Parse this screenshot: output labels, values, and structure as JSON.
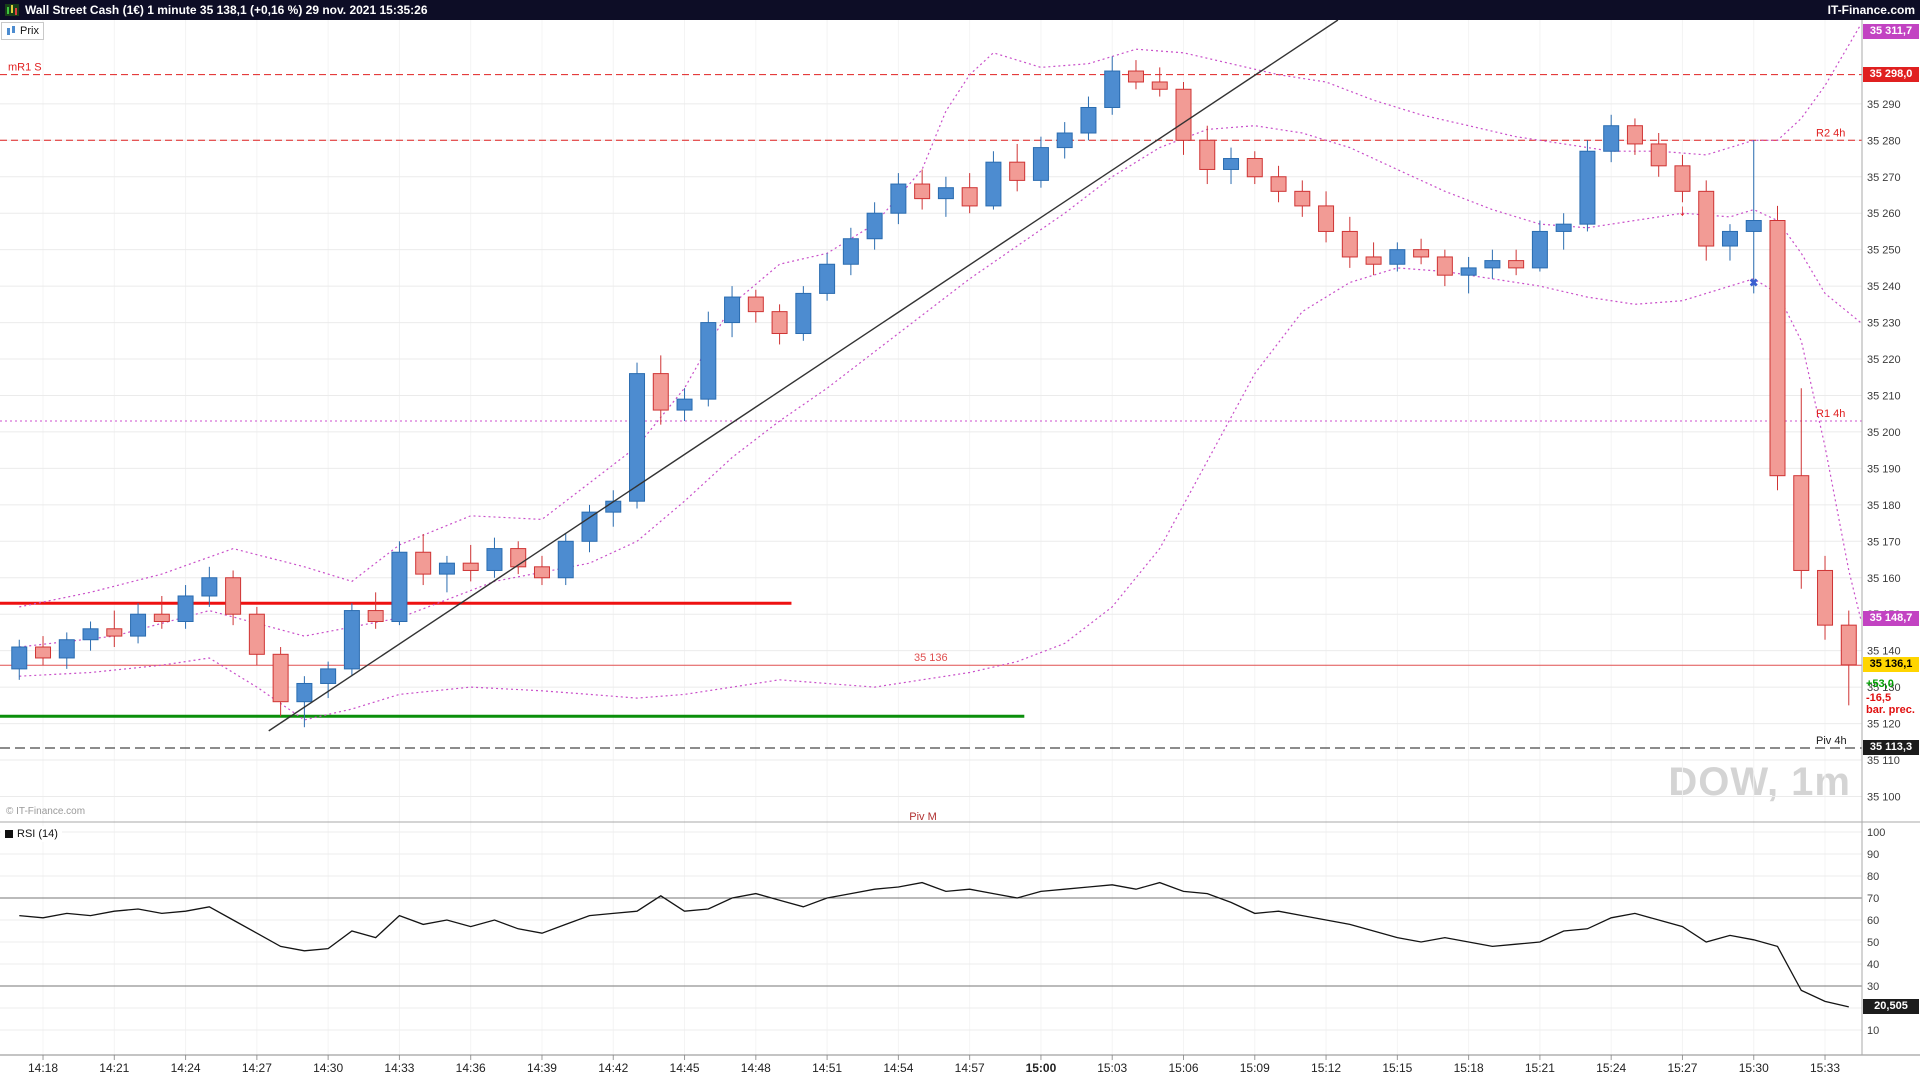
{
  "header": {
    "title": "Wall Street Cash (1€) 1 minute 35 138,1 (+0,16 %) 29 nov. 2021 15:35:26",
    "brand": "IT-Finance.com"
  },
  "toolbar": {
    "price_tab": "Prix"
  },
  "main": {
    "watermark": "DOW, 1m",
    "copyright": "© IT-Finance.com"
  },
  "axis_tags": {
    "upper_band": "35 311,7",
    "mr1s": "35 298,0",
    "lower_band": "35 148,7",
    "last_price": "35 136,1",
    "daily_change": "+53,0",
    "bar_prec_value": "-16,5",
    "bar_prec_label": "bar. prec.",
    "pivot": "35 113,3",
    "rsi_value": "20,505"
  },
  "chart_data": {
    "type": "candlestick",
    "symbol": "Wall Street Cash (1€)",
    "timeframe": "1 minute",
    "last": 35136.1,
    "ylim": [
      35093,
      35313
    ],
    "price_ticks": [
      35290,
      35280,
      35270,
      35260,
      35250,
      35240,
      35230,
      35220,
      35210,
      35200,
      35190,
      35180,
      35170,
      35160,
      35150,
      35140,
      35130,
      35120,
      35110,
      35100
    ],
    "time_labels": [
      "14:18",
      "14:21",
      "14:24",
      "14:27",
      "14:30",
      "14:33",
      "14:36",
      "14:39",
      "14:42",
      "14:45",
      "14:48",
      "14:51",
      "14:54",
      "14:57",
      "15:00",
      "15:03",
      "15:06",
      "15:09",
      "15:12",
      "15:15",
      "15:18",
      "15:21",
      "15:24",
      "15:27",
      "15:30",
      "15:33"
    ],
    "time_start_m": 2,
    "time_step_m": 3,
    "time_bold": "15:00",
    "candles": [
      [
        "14:17",
        35135,
        35143,
        35132,
        35141
      ],
      [
        "14:18",
        35141,
        35144,
        35136,
        35138
      ],
      [
        "14:19",
        35138,
        35145,
        35135,
        35143
      ],
      [
        "14:20",
        35143,
        35148,
        35140,
        35146
      ],
      [
        "14:21",
        35146,
        35151,
        35141,
        35144
      ],
      [
        "14:22",
        35144,
        35153,
        35142,
        35150
      ],
      [
        "14:23",
        35150,
        35155,
        35146,
        35148
      ],
      [
        "14:24",
        35148,
        35158,
        35146,
        35155
      ],
      [
        "14:25",
        35155,
        35163,
        35152,
        35160
      ],
      [
        "14:26",
        35160,
        35162,
        35147,
        35150
      ],
      [
        "14:27",
        35150,
        35152,
        35136,
        35139
      ],
      [
        "14:28",
        35139,
        35141,
        35122,
        35126
      ],
      [
        "14:29",
        35126,
        35133,
        35119,
        35131
      ],
      [
        "14:30",
        35131,
        35137,
        35127,
        35135
      ],
      [
        "14:31",
        35135,
        35153,
        35133,
        35151
      ],
      [
        "14:32",
        35151,
        35156,
        35146,
        35148
      ],
      [
        "14:33",
        35148,
        35170,
        35147,
        35167
      ],
      [
        "14:34",
        35167,
        35172,
        35158,
        35161
      ],
      [
        "14:35",
        35161,
        35166,
        35156,
        35164
      ],
      [
        "14:36",
        35164,
        35169,
        35159,
        35162
      ],
      [
        "14:37",
        35162,
        35171,
        35160,
        35168
      ],
      [
        "14:38",
        35168,
        35170,
        35161,
        35163
      ],
      [
        "14:39",
        35163,
        35166,
        35158,
        35160
      ],
      [
        "14:40",
        35160,
        35172,
        35158,
        35170
      ],
      [
        "14:41",
        35170,
        35180,
        35167,
        35178
      ],
      [
        "14:42",
        35178,
        35184,
        35174,
        35181
      ],
      [
        "14:43",
        35181,
        35219,
        35179,
        35216
      ],
      [
        "14:44",
        35216,
        35221,
        35202,
        35206
      ],
      [
        "14:45",
        35206,
        35212,
        35203,
        35209
      ],
      [
        "14:46",
        35209,
        35233,
        35207,
        35230
      ],
      [
        "14:47",
        35230,
        35240,
        35226,
        35237
      ],
      [
        "14:48",
        35237,
        35239,
        35230,
        35233
      ],
      [
        "14:49",
        35233,
        35235,
        35224,
        35227
      ],
      [
        "14:50",
        35227,
        35240,
        35225,
        35238
      ],
      [
        "14:51",
        35238,
        35249,
        35236,
        35246
      ],
      [
        "14:52",
        35246,
        35256,
        35243,
        35253
      ],
      [
        "14:53",
        35253,
        35263,
        35250,
        35260
      ],
      [
        "14:54",
        35260,
        35271,
        35257,
        35268
      ],
      [
        "14:55",
        35268,
        35272,
        35261,
        35264
      ],
      [
        "14:56",
        35264,
        35270,
        35259,
        35267
      ],
      [
        "14:57",
        35267,
        35271,
        35260,
        35262
      ],
      [
        "14:58",
        35262,
        35277,
        35261,
        35274
      ],
      [
        "14:59",
        35274,
        35279,
        35266,
        35269
      ],
      [
        "15:00",
        35269,
        35281,
        35267,
        35278
      ],
      [
        "15:01",
        35278,
        35285,
        35275,
        35282
      ],
      [
        "15:02",
        35282,
        35292,
        35280,
        35289
      ],
      [
        "15:03",
        35289,
        35303,
        35287,
        35299
      ],
      [
        "15:04",
        35299,
        35302,
        35294,
        35296
      ],
      [
        "15:05",
        35296,
        35300,
        35292,
        35294
      ],
      [
        "15:06",
        35294,
        35296,
        35276,
        35280
      ],
      [
        "15:07",
        35280,
        35284,
        35268,
        35272
      ],
      [
        "15:08",
        35272,
        35278,
        35268,
        35275
      ],
      [
        "15:09",
        35275,
        35277,
        35268,
        35270
      ],
      [
        "15:10",
        35270,
        35273,
        35263,
        35266
      ],
      [
        "15:11",
        35266,
        35269,
        35259,
        35262
      ],
      [
        "15:12",
        35262,
        35266,
        35252,
        35255
      ],
      [
        "15:13",
        35255,
        35259,
        35245,
        35248
      ],
      [
        "15:14",
        35248,
        35252,
        35243,
        35246
      ],
      [
        "15:15",
        35246,
        35252,
        35244,
        35250
      ],
      [
        "15:16",
        35250,
        35253,
        35246,
        35248
      ],
      [
        "15:17",
        35248,
        35250,
        35240,
        35243
      ],
      [
        "15:18",
        35243,
        35248,
        35238,
        35245
      ],
      [
        "15:19",
        35245,
        35250,
        35242,
        35247
      ],
      [
        "15:20",
        35247,
        35250,
        35243,
        35245
      ],
      [
        "15:21",
        35245,
        35258,
        35244,
        35255
      ],
      [
        "15:22",
        35255,
        35260,
        35250,
        35257
      ],
      [
        "15:23",
        35257,
        35280,
        35255,
        35277
      ],
      [
        "15:24",
        35277,
        35287,
        35274,
        35284
      ],
      [
        "15:25",
        35284,
        35286,
        35276,
        35279
      ],
      [
        "15:26",
        35279,
        35282,
        35270,
        35273
      ],
      [
        "15:27",
        35273,
        35276,
        35263,
        35266
      ],
      [
        "15:28",
        35266,
        35269,
        35247,
        35251
      ],
      [
        "15:29",
        35251,
        35257,
        35247,
        35255
      ],
      [
        "15:30",
        35255,
        35280,
        35238,
        35258
      ],
      [
        "15:31",
        35258,
        35262,
        35184,
        35188
      ],
      [
        "15:32",
        35188,
        35212,
        35157,
        35162
      ],
      [
        "15:33",
        35162,
        35166,
        35143,
        35147
      ],
      [
        "15:34",
        35147,
        35151,
        35125,
        35136.1
      ]
    ],
    "bollinger": {
      "color": "#c94fc9",
      "upper": [
        [
          1,
          35152
        ],
        [
          4,
          35156
        ],
        [
          7,
          35161
        ],
        [
          10,
          35168
        ],
        [
          13,
          35163
        ],
        [
          15,
          35159
        ],
        [
          17,
          35169
        ],
        [
          20,
          35177
        ],
        [
          23,
          35176
        ],
        [
          25,
          35186
        ],
        [
          27,
          35196
        ],
        [
          29,
          35212
        ],
        [
          31,
          35235
        ],
        [
          33,
          35246
        ],
        [
          35,
          35249
        ],
        [
          37,
          35257
        ],
        [
          39,
          35272
        ],
        [
          40,
          35288
        ],
        [
          41,
          35298
        ],
        [
          42,
          35304
        ],
        [
          44,
          35300
        ],
        [
          46,
          35301
        ],
        [
          48,
          35305
        ],
        [
          50,
          35304
        ],
        [
          52,
          35301
        ],
        [
          54,
          35298
        ],
        [
          56,
          35296
        ],
        [
          58,
          35291
        ],
        [
          60,
          35287
        ],
        [
          62,
          35284
        ],
        [
          64,
          35281
        ],
        [
          66,
          35279
        ],
        [
          68,
          35277
        ],
        [
          70,
          35277
        ],
        [
          72,
          35276
        ],
        [
          74,
          35280
        ],
        [
          75,
          35280
        ],
        [
          76,
          35286
        ],
        [
          77,
          35295
        ],
        [
          78.5,
          35311.7
        ]
      ],
      "middle": [
        [
          1,
          35141
        ],
        [
          5,
          35144
        ],
        [
          9,
          35151
        ],
        [
          13,
          35144
        ],
        [
          17,
          35149
        ],
        [
          21,
          35159
        ],
        [
          25,
          35164
        ],
        [
          27,
          35170
        ],
        [
          29,
          35181
        ],
        [
          31,
          35193
        ],
        [
          33,
          35203
        ],
        [
          35,
          35212
        ],
        [
          37,
          35222
        ],
        [
          39,
          35232
        ],
        [
          41,
          35242
        ],
        [
          43,
          35251
        ],
        [
          45,
          35260
        ],
        [
          47,
          35270
        ],
        [
          49,
          35278
        ],
        [
          51,
          35283
        ],
        [
          53,
          35284
        ],
        [
          55,
          35282
        ],
        [
          57,
          35278
        ],
        [
          59,
          35272
        ],
        [
          61,
          35266
        ],
        [
          63,
          35261
        ],
        [
          65,
          35257
        ],
        [
          67,
          35256
        ],
        [
          69,
          35258
        ],
        [
          71,
          35260
        ],
        [
          73,
          35259
        ],
        [
          74,
          35261
        ],
        [
          75,
          35258
        ],
        [
          76,
          35249
        ],
        [
          77,
          35238
        ],
        [
          78.5,
          35230
        ]
      ],
      "lower": [
        [
          1,
          35133
        ],
        [
          4,
          35134
        ],
        [
          7,
          35136
        ],
        [
          9,
          35138
        ],
        [
          11,
          35130
        ],
        [
          13,
          35121
        ],
        [
          15,
          35124
        ],
        [
          17,
          35128
        ],
        [
          20,
          35130
        ],
        [
          23,
          35129
        ],
        [
          25,
          35128
        ],
        [
          27,
          35127
        ],
        [
          29,
          35128
        ],
        [
          31,
          35130
        ],
        [
          33,
          35132
        ],
        [
          35,
          35131
        ],
        [
          37,
          35130
        ],
        [
          39,
          35132
        ],
        [
          41,
          35134
        ],
        [
          43,
          35137
        ],
        [
          45,
          35142
        ],
        [
          47,
          35152
        ],
        [
          49,
          35168
        ],
        [
          51,
          35192
        ],
        [
          53,
          35216
        ],
        [
          55,
          35233
        ],
        [
          57,
          35241
        ],
        [
          59,
          35245
        ],
        [
          61,
          35244
        ],
        [
          63,
          35242
        ],
        [
          65,
          35240
        ],
        [
          67,
          35237
        ],
        [
          69,
          35235
        ],
        [
          71,
          35236
        ],
        [
          73,
          35240
        ],
        [
          74,
          35242
        ],
        [
          75,
          35238
        ],
        [
          76,
          35225
        ],
        [
          77,
          35196
        ],
        [
          78,
          35162
        ],
        [
          78.5,
          35148.7
        ]
      ]
    },
    "trend_line": {
      "m1": 11.5,
      "p1": 35118,
      "m2": 56.5,
      "p2": 35313
    },
    "levels": [
      {
        "label": "mR1 S",
        "value": 35298.0,
        "style": "dash",
        "color": "#e02020",
        "label_pos": "left"
      },
      {
        "label": "R2 4h",
        "value": 35280.0,
        "style": "dash",
        "color": "#e02020",
        "label_pos": "right"
      },
      {
        "label": "R1 4h",
        "value": 35203.0,
        "style": "dot",
        "color": "#cc4fcc",
        "label_color": "#e02020",
        "label_pos": "right"
      },
      {
        "label": "Piv 4h",
        "value": 35113.3,
        "style": "longdash",
        "color": "#1a1a1a",
        "label_pos": "right"
      },
      {
        "label": "",
        "value": 35153.0,
        "style": "solid",
        "color": "#ee1111",
        "width": 3,
        "m_to": 33.5
      },
      {
        "label": "35 136",
        "value": 35136.0,
        "style": "solid",
        "color": "#e05050",
        "width": 1,
        "label_pos": "inline",
        "label_m": 39.5
      },
      {
        "label": "",
        "value": 35122.0,
        "style": "solid",
        "color": "#0b8f0b",
        "width": 3,
        "m_to": 43.3
      },
      {
        "label": "Piv M",
        "value": 35090.0,
        "style": "none",
        "color": "#b03030",
        "label_pos": "inline",
        "label_m": 39.3
      }
    ],
    "markers": [
      {
        "type": "arrow-down",
        "m": 71,
        "price": 35261,
        "color": "#e02020"
      },
      {
        "type": "cross",
        "m": 74,
        "price": 35241,
        "color": "#3a5fd0"
      }
    ],
    "rsi": {
      "label": "RSI (14)",
      "period": 14,
      "last": 20.505,
      "ref_lines": [
        70,
        30
      ],
      "ticks": [
        100,
        90,
        80,
        70,
        60,
        50,
        40,
        30,
        20,
        10
      ],
      "values": [
        62,
        61,
        63,
        62,
        64,
        65,
        63,
        64,
        66,
        60,
        54,
        48,
        46,
        47,
        55,
        52,
        62,
        58,
        60,
        57,
        60,
        56,
        54,
        58,
        62,
        63,
        64,
        71,
        64,
        65,
        70,
        72,
        69,
        66,
        70,
        72,
        74,
        75,
        77,
        73,
        74,
        72,
        70,
        73,
        74,
        75,
        76,
        74,
        77,
        73,
        72,
        68,
        63,
        64,
        62,
        60,
        58,
        55,
        52,
        50,
        52,
        50,
        48,
        49,
        50,
        55,
        56,
        61,
        63,
        60,
        57,
        50,
        53,
        51,
        48,
        28,
        23,
        20.5
      ]
    }
  }
}
